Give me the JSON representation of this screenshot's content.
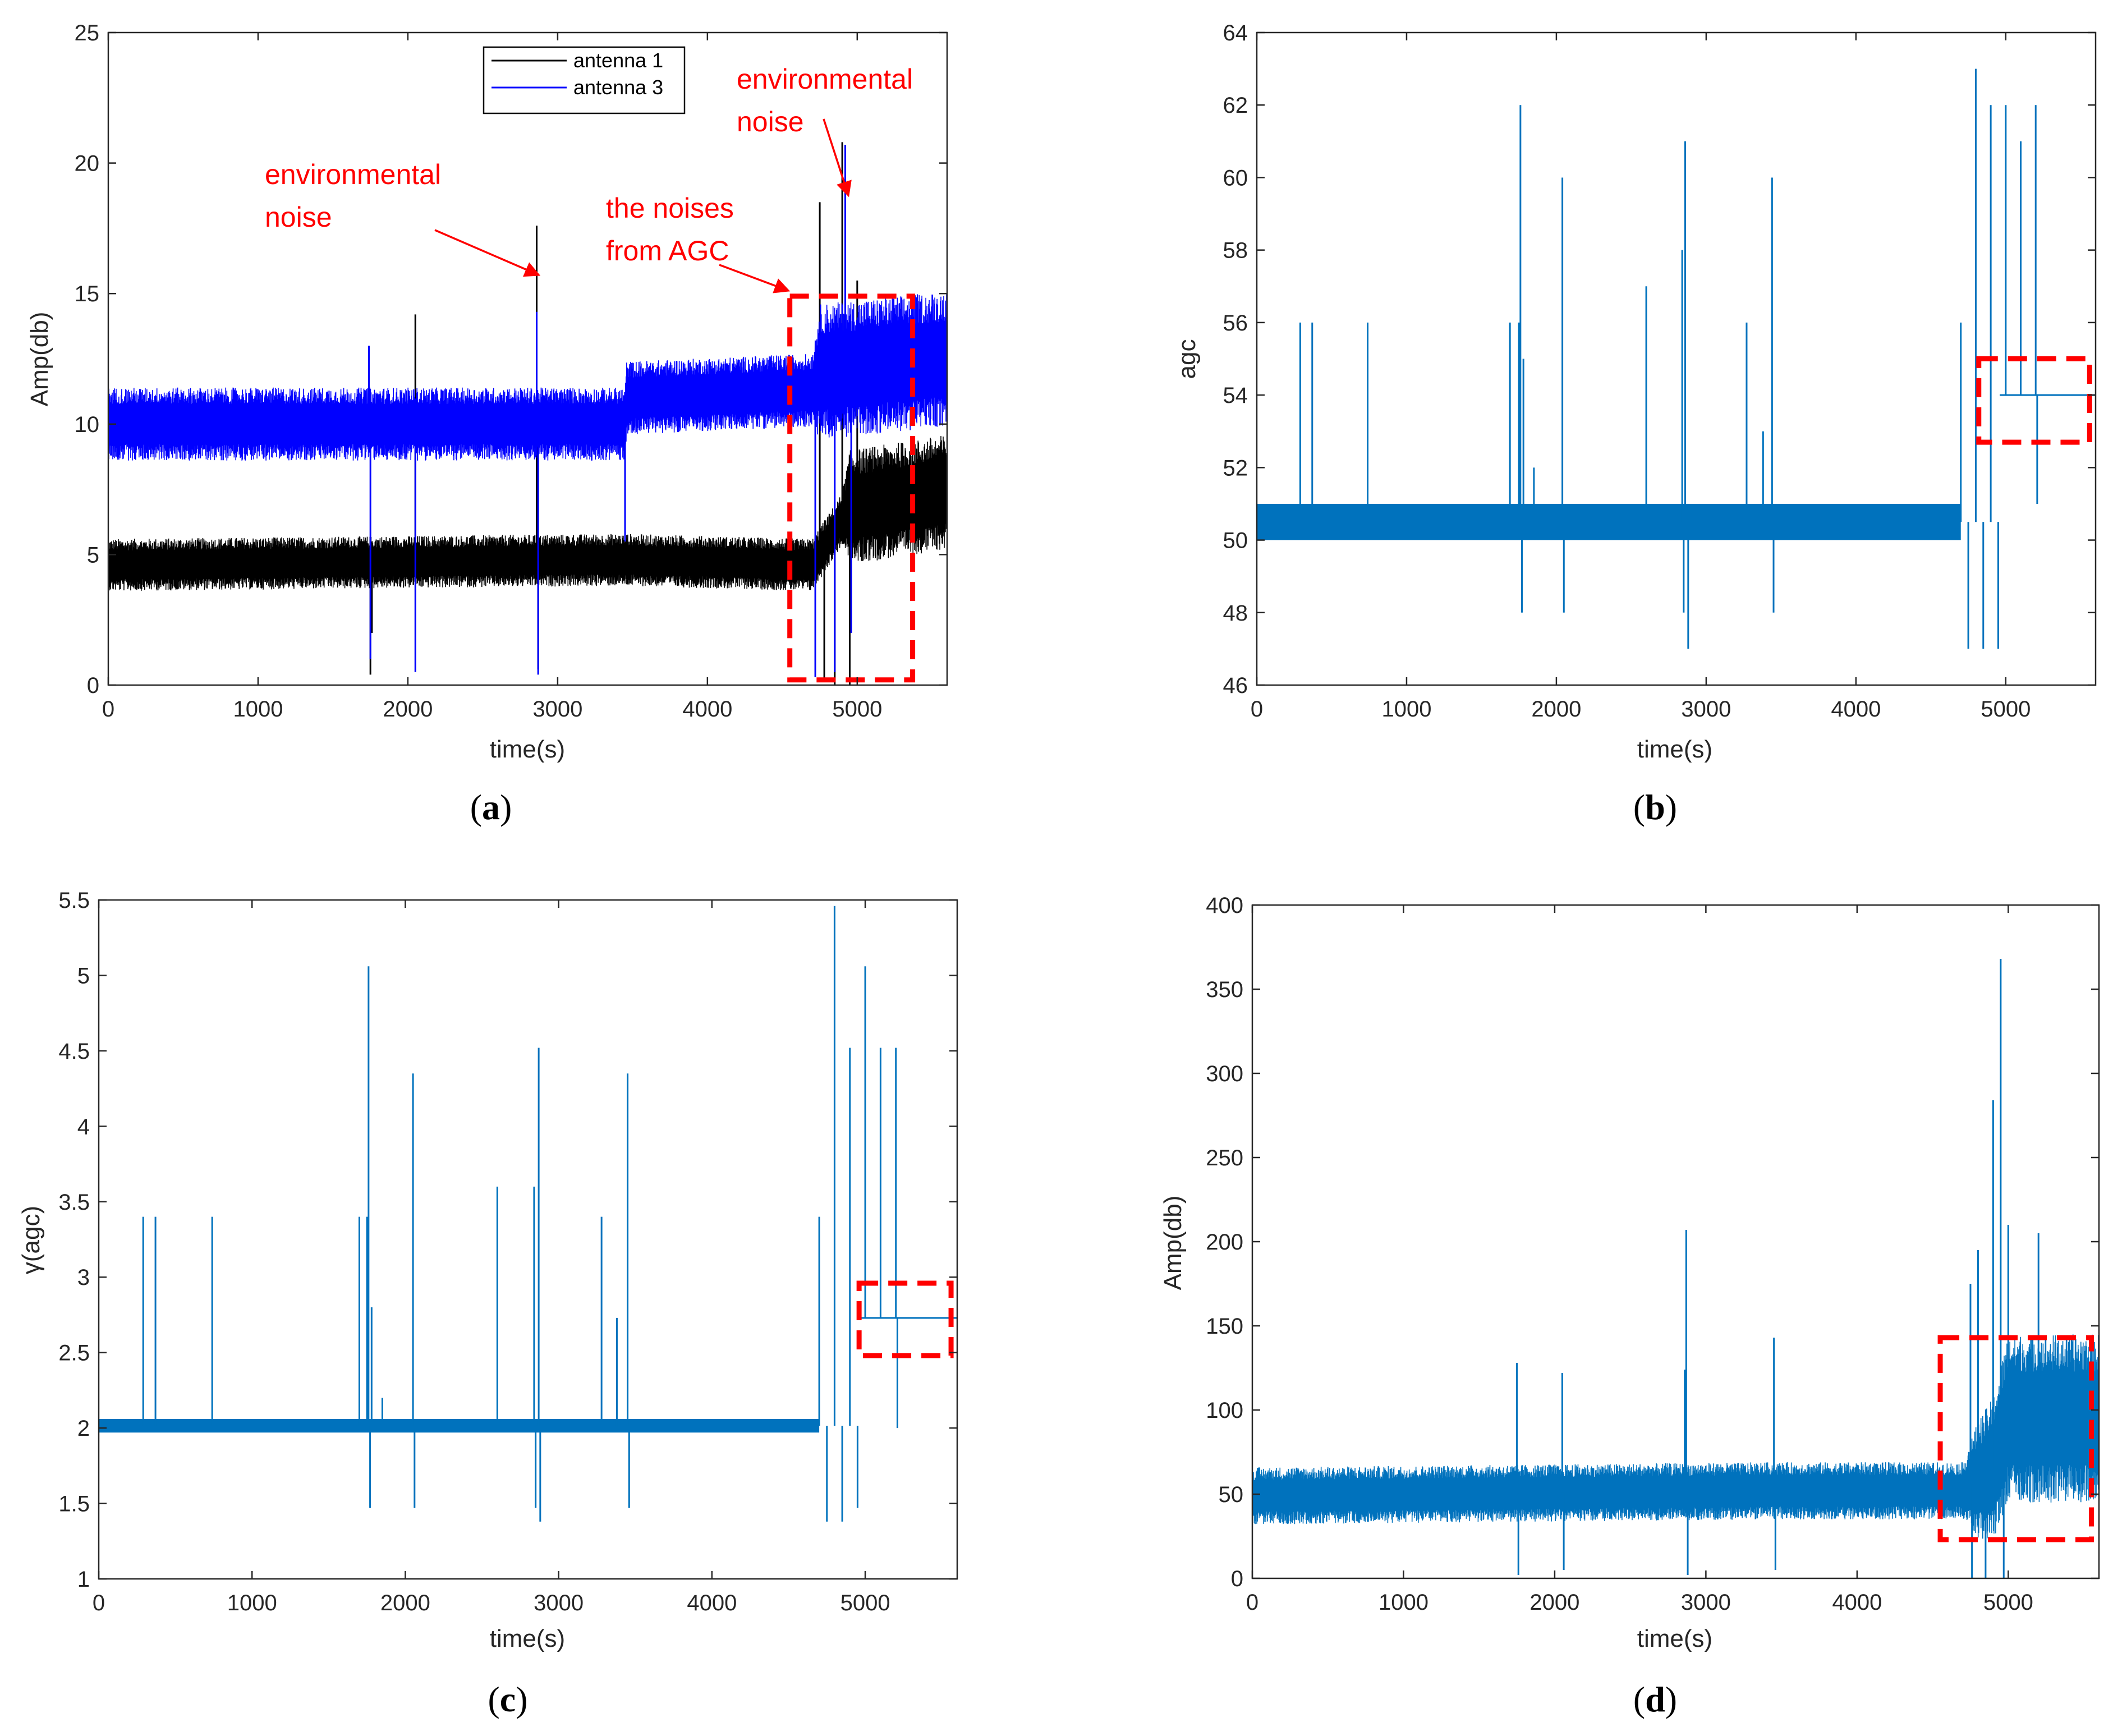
{
  "chart_data": [
    {
      "id": "a",
      "type": "line",
      "caption": "a",
      "xlabel": "time(s)",
      "ylabel": "Amp(db)",
      "xlim": [
        0,
        5600
      ],
      "ylim": [
        0,
        25
      ],
      "xticks": [
        0,
        1000,
        2000,
        3000,
        4000,
        5000
      ],
      "yticks": [
        0,
        5,
        10,
        15,
        20,
        25
      ],
      "grid": false,
      "legend": {
        "position": "top-center",
        "entries": [
          "antenna 1",
          "antenna 3"
        ]
      },
      "series": [
        {
          "name": "antenna 1",
          "color": "#000000",
          "baseline": [
            [
              0,
              4.6
            ],
            [
              3450,
              4.8
            ],
            [
              4700,
              4.6
            ],
            [
              4950,
              6.8
            ],
            [
              5600,
              7.4
            ]
          ],
          "noise": [
            [
              0,
              1.0
            ],
            [
              4900,
              1.0
            ],
            [
              4950,
              2.2
            ],
            [
              5600,
              2.2
            ]
          ],
          "spikes": [
            [
              1750,
              0.4,
              1
            ],
            [
              1760,
              2.0,
              1
            ],
            [
              2050,
              14.2,
              0
            ],
            [
              2860,
              17.6,
              0
            ],
            [
              2870,
              0.6,
              1
            ],
            [
              3450,
              4.5,
              0
            ],
            [
              4750,
              18.5,
              0
            ],
            [
              4780,
              0.2,
              1
            ],
            [
              4850,
              0.0,
              1
            ],
            [
              4900,
              20.8,
              0
            ],
            [
              4950,
              0.0,
              1
            ],
            [
              5000,
              15.5,
              0
            ]
          ]
        },
        {
          "name": "antenna 3",
          "color": "#0000ff",
          "baseline": [
            [
              0,
              10.0
            ],
            [
              3450,
              10.0
            ],
            [
              3460,
              11.0
            ],
            [
              4700,
              11.3
            ],
            [
              4750,
              12.0
            ],
            [
              5600,
              12.5
            ]
          ],
          "noise": [
            [
              0,
              1.4
            ],
            [
              4700,
              1.4
            ],
            [
              4750,
              2.6
            ],
            [
              5600,
              2.6
            ]
          ],
          "spikes": [
            [
              1740,
              13.0,
              0
            ],
            [
              1750,
              1.0,
              1
            ],
            [
              2050,
              0.5,
              1
            ],
            [
              2860,
              14.3,
              0
            ],
            [
              2870,
              0.4,
              1
            ],
            [
              3450,
              5.5,
              0
            ],
            [
              4720,
              0.3,
              1
            ],
            [
              4850,
              0.5,
              1
            ],
            [
              4920,
              20.7,
              0
            ],
            [
              4960,
              2.0,
              1
            ]
          ]
        }
      ],
      "annotations": [
        {
          "lines": [
            "environmental",
            "noise"
          ]
        },
        {
          "lines": [
            "environmental",
            "noise"
          ]
        },
        {
          "lines": [
            "the noises",
            "from AGC"
          ]
        }
      ],
      "highlight_box": {
        "x": [
          4550,
          5370
        ],
        "y": [
          0.2,
          14.9
        ]
      },
      "colors": {
        "annotation": "#ff0000"
      }
    },
    {
      "id": "b",
      "type": "line",
      "caption": "b",
      "xlabel": "time(s)",
      "ylabel": "agc",
      "xlim": [
        0,
        5600
      ],
      "ylim": [
        46,
        64
      ],
      "xticks": [
        0,
        1000,
        2000,
        3000,
        4000,
        5000
      ],
      "yticks": [
        46,
        48,
        50,
        52,
        54,
        56,
        58,
        60,
        62,
        64
      ],
      "grid": false,
      "series": [
        {
          "name": "agc",
          "color": "#0072bd",
          "band": [
            [
              0,
              4700,
              50.0,
              51.0
            ]
          ],
          "flat": [
            [
              4960,
              5600,
              54.0
            ]
          ],
          "spikes": [
            [
              290,
              56.0,
              0
            ],
            [
              370,
              56.0,
              0
            ],
            [
              740,
              56.0,
              0
            ],
            [
              1690,
              56.0,
              0
            ],
            [
              1750,
              56.0,
              0
            ],
            [
              1760,
              62.0,
              0
            ],
            [
              1770,
              48.0,
              1
            ],
            [
              1780,
              55.0,
              0
            ],
            [
              1850,
              52.0,
              0
            ],
            [
              2040,
              60.0,
              0
            ],
            [
              2050,
              48.0,
              1
            ],
            [
              2600,
              57.0,
              0
            ],
            [
              2840,
              58.0,
              0
            ],
            [
              2850,
              48.0,
              1
            ],
            [
              2860,
              61.0,
              0
            ],
            [
              2880,
              47.0,
              1
            ],
            [
              3270,
              56.0,
              0
            ],
            [
              3380,
              53.0,
              0
            ],
            [
              3440,
              60.0,
              0
            ],
            [
              3450,
              48.0,
              1
            ],
            [
              4700,
              56.0,
              0
            ],
            [
              4750,
              47.0,
              1
            ],
            [
              4800,
              63.0,
              0
            ],
            [
              4850,
              47.0,
              1
            ],
            [
              4900,
              62.0,
              0
            ],
            [
              4950,
              47.0,
              1
            ],
            [
              5000,
              62.0,
              0
            ],
            [
              5100,
              61.0,
              0
            ],
            [
              5200,
              62.0,
              0
            ],
            [
              5210,
              51.0,
              1
            ]
          ]
        }
      ],
      "highlight_box": {
        "x": [
          4820,
          5560
        ],
        "y": [
          52.7,
          55.0
        ]
      },
      "colors": {
        "annotation": "#ff0000"
      }
    },
    {
      "id": "c",
      "type": "line",
      "caption": "c",
      "xlabel": "time(s)",
      "ylabel": "γ(agc)",
      "xlim": [
        0,
        5600
      ],
      "ylim": [
        1,
        5.5
      ],
      "xticks": [
        0,
        1000,
        2000,
        3000,
        4000,
        5000
      ],
      "yticks": [
        1,
        1.5,
        2,
        2.5,
        3,
        3.5,
        4,
        4.5,
        5,
        5.5
      ],
      "grid": false,
      "series": [
        {
          "name": "gamma(agc)",
          "color": "#0072bd",
          "band": [
            [
              0,
              4700,
              1.97,
              2.06
            ]
          ],
          "flat": [
            [
              4960,
              5600,
              2.73
            ]
          ],
          "spikes": [
            [
              290,
              3.4,
              0
            ],
            [
              370,
              3.4,
              0
            ],
            [
              740,
              3.4,
              0
            ],
            [
              1700,
              3.4,
              0
            ],
            [
              1750,
              3.4,
              0
            ],
            [
              1760,
              5.06,
              0
            ],
            [
              1770,
              1.47,
              1
            ],
            [
              1780,
              2.8,
              0
            ],
            [
              1850,
              2.2,
              0
            ],
            [
              2050,
              4.35,
              0
            ],
            [
              2060,
              1.47,
              1
            ],
            [
              2600,
              3.6,
              0
            ],
            [
              2840,
              3.6,
              0
            ],
            [
              2850,
              1.47,
              1
            ],
            [
              2870,
              4.52,
              0
            ],
            [
              2880,
              1.38,
              1
            ],
            [
              3280,
              3.4,
              0
            ],
            [
              3380,
              2.73,
              0
            ],
            [
              3450,
              4.35,
              0
            ],
            [
              3460,
              1.47,
              1
            ],
            [
              4700,
              3.4,
              0
            ],
            [
              4750,
              1.38,
              1
            ],
            [
              4800,
              5.46,
              0
            ],
            [
              4850,
              1.38,
              1
            ],
            [
              4900,
              4.52,
              0
            ],
            [
              4950,
              1.47,
              1
            ],
            [
              5000,
              5.06,
              0
            ],
            [
              5100,
              4.52,
              0
            ],
            [
              5200,
              4.52,
              0
            ],
            [
              5210,
              2.0,
              1
            ]
          ]
        }
      ],
      "highlight_box": {
        "x": [
          4960,
          5560
        ],
        "y": [
          2.48,
          2.96
        ]
      },
      "colors": {
        "annotation": "#ff0000"
      }
    },
    {
      "id": "d",
      "type": "line",
      "caption": "d",
      "xlabel": "time(s)",
      "ylabel": "Amp(db)",
      "xlim": [
        0,
        5600
      ],
      "ylim": [
        0,
        400
      ],
      "xticks": [
        0,
        1000,
        2000,
        3000,
        4000,
        5000
      ],
      "yticks": [
        0,
        50,
        100,
        150,
        200,
        250,
        300,
        350,
        400
      ],
      "grid": false,
      "series": [
        {
          "name": "amplitude",
          "color": "#0072bd",
          "baseline": [
            [
              0,
              49
            ],
            [
              3450,
              52
            ],
            [
              4700,
              52
            ],
            [
              4900,
              65
            ],
            [
              5000,
              95
            ],
            [
              5600,
              95
            ]
          ],
          "noise": [
            [
              0,
              17
            ],
            [
              4700,
              17
            ],
            [
              4800,
              35
            ],
            [
              5000,
              50
            ],
            [
              5600,
              50
            ]
          ],
          "spikes": [
            [
              1750,
              128,
              0
            ],
            [
              1760,
              2,
              1
            ],
            [
              2050,
              122,
              0
            ],
            [
              2060,
              5,
              1
            ],
            [
              2860,
              124,
              0
            ],
            [
              2870,
              207,
              0
            ],
            [
              2880,
              2,
              1
            ],
            [
              3450,
              143,
              0
            ],
            [
              3460,
              5,
              1
            ],
            [
              4750,
              175,
              0
            ],
            [
              4760,
              0,
              1
            ],
            [
              4800,
              195,
              0
            ],
            [
              4850,
              0,
              1
            ],
            [
              4900,
              284,
              0
            ],
            [
              4950,
              368,
              0
            ],
            [
              4970,
              0,
              1
            ],
            [
              5000,
              210,
              0
            ],
            [
              5200,
              205,
              0
            ]
          ]
        }
      ],
      "highlight_box": {
        "x": [
          4550,
          5550
        ],
        "y": [
          23,
          143
        ]
      },
      "colors": {
        "annotation": "#ff0000"
      }
    }
  ]
}
